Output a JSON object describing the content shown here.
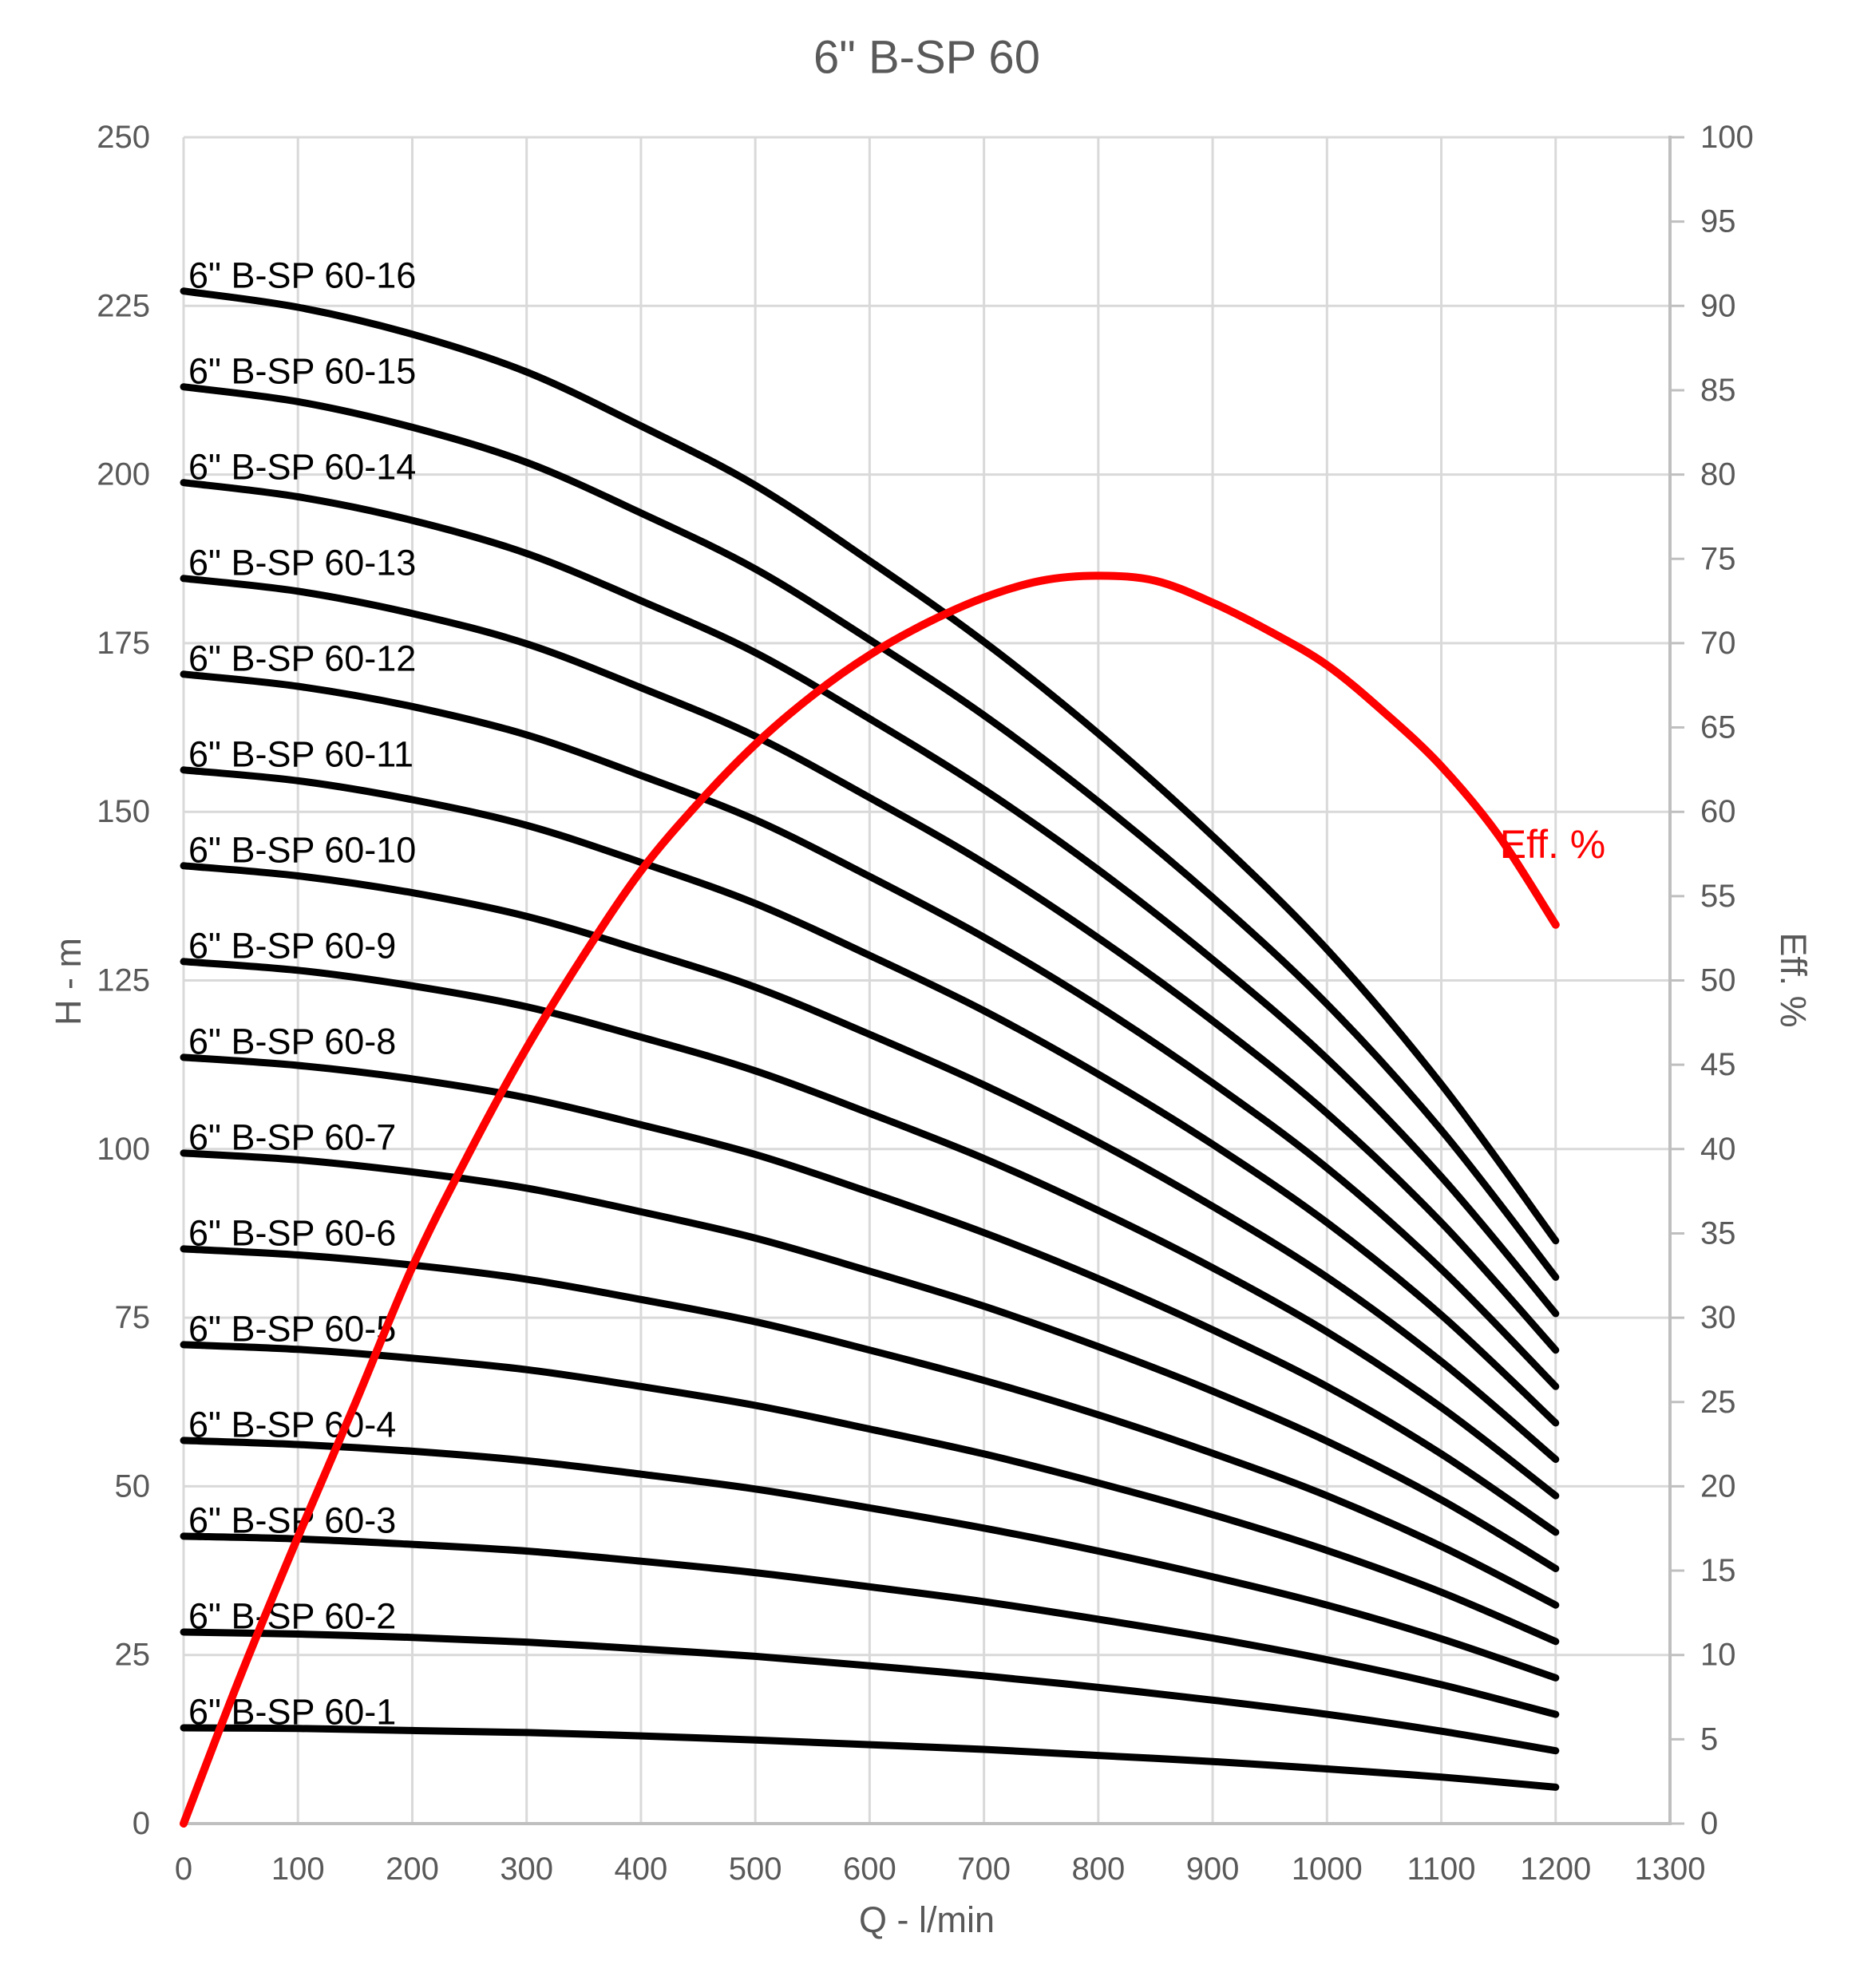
{
  "chart_data": {
    "type": "line",
    "title": "6\" B-SP 60",
    "xlabel": "Q - l/min",
    "ylabel_left": "H - m",
    "ylabel_right": "Eff. %",
    "grid": true,
    "legend": "none (curves labeled inline)",
    "x_axis": {
      "min": 0,
      "max": 1300,
      "tick_step": 100,
      "tick_labels": [
        "0",
        "100",
        "200",
        "300",
        "400",
        "500",
        "600",
        "700",
        "800",
        "900",
        "1000",
        "1100",
        "1200",
        "1300"
      ]
    },
    "y_axis_left": {
      "min": 0,
      "max": 250,
      "tick_step": 25,
      "tick_labels": [
        "0",
        "25",
        "50",
        "75",
        "100",
        "125",
        "150",
        "175",
        "200",
        "225",
        "250"
      ]
    },
    "y_axis_right": {
      "min": 0,
      "max": 100,
      "label_step": 5,
      "gridline_step": 10,
      "tick_labels": [
        "0",
        "5",
        "10",
        "15",
        "20",
        "25",
        "30",
        "35",
        "40",
        "45",
        "50",
        "55",
        "60",
        "65",
        "70",
        "75",
        "80",
        "85",
        "90",
        "95",
        "100"
      ]
    },
    "q": [
      0,
      100,
      200,
      300,
      400,
      500,
      600,
      700,
      800,
      900,
      1000,
      1100,
      1200
    ],
    "series": [
      {
        "name": "6\" B-SP 60-1",
        "stage": 1,
        "axis": "left",
        "values": [
          14.2,
          14.1,
          13.8,
          13.5,
          13.0,
          12.4,
          11.7,
          11.0,
          10.1,
          9.2,
          8.1,
          6.9,
          5.4
        ]
      },
      {
        "name": "6\" B-SP 60-2",
        "stage": 2,
        "axis": "left",
        "values": [
          28.4,
          28.1,
          27.6,
          26.9,
          25.9,
          24.8,
          23.4,
          21.9,
          20.2,
          18.3,
          16.2,
          13.7,
          10.8
        ]
      },
      {
        "name": "6\" B-SP 60-3",
        "stage": 3,
        "axis": "left",
        "values": [
          42.6,
          42.2,
          41.4,
          40.4,
          38.9,
          37.2,
          35.1,
          32.9,
          30.3,
          27.5,
          24.3,
          20.6,
          16.2
        ]
      },
      {
        "name": "6\" B-SP 60-4",
        "stage": 4,
        "axis": "left",
        "values": [
          56.8,
          56.2,
          55.2,
          53.8,
          51.8,
          49.6,
          46.8,
          43.8,
          40.4,
          36.6,
          32.4,
          27.4,
          21.6
        ]
      },
      {
        "name": "6\" B-SP 60-5",
        "stage": 5,
        "axis": "left",
        "values": [
          71.0,
          70.3,
          69.0,
          67.3,
          64.8,
          62.0,
          58.5,
          54.8,
          50.5,
          45.8,
          40.5,
          34.3,
          27.0
        ]
      },
      {
        "name": "6\" B-SP 60-6",
        "stage": 6,
        "axis": "left",
        "values": [
          85.2,
          84.3,
          82.8,
          80.7,
          77.7,
          74.4,
          70.2,
          65.7,
          60.6,
          54.9,
          48.6,
          41.1,
          32.4
        ]
      },
      {
        "name": "6\" B-SP 60-7",
        "stage": 7,
        "axis": "left",
        "values": [
          99.4,
          98.4,
          96.6,
          94.2,
          90.7,
          86.8,
          81.9,
          76.7,
          70.7,
          64.1,
          56.7,
          48.0,
          37.8
        ]
      },
      {
        "name": "6\" B-SP 60-8",
        "stage": 8,
        "axis": "left",
        "values": [
          113.6,
          112.4,
          110.4,
          107.6,
          103.6,
          99.2,
          93.6,
          87.6,
          80.8,
          73.2,
          64.8,
          54.8,
          43.2
        ]
      },
      {
        "name": "6\" B-SP 60-9",
        "stage": 9,
        "axis": "left",
        "values": [
          127.8,
          126.5,
          124.2,
          121.1,
          116.6,
          111.6,
          105.3,
          98.6,
          90.9,
          82.4,
          72.9,
          61.7,
          48.6
        ]
      },
      {
        "name": "6\" B-SP 60-10",
        "stage": 10,
        "axis": "left",
        "values": [
          142.0,
          140.5,
          138.0,
          134.5,
          129.5,
          124.0,
          117.0,
          109.5,
          101.0,
          91.5,
          81.0,
          68.5,
          54.0
        ]
      },
      {
        "name": "6\" B-SP 60-11",
        "stage": 11,
        "axis": "left",
        "values": [
          156.2,
          154.6,
          151.8,
          148.0,
          142.5,
          136.4,
          128.7,
          120.5,
          111.1,
          100.7,
          89.1,
          75.4,
          59.4
        ]
      },
      {
        "name": "6\" B-SP 60-12",
        "stage": 12,
        "axis": "left",
        "values": [
          170.4,
          168.6,
          165.6,
          161.4,
          155.4,
          148.8,
          140.4,
          131.4,
          121.2,
          109.8,
          97.2,
          82.2,
          64.8
        ]
      },
      {
        "name": "6\" B-SP 60-13",
        "stage": 13,
        "axis": "left",
        "values": [
          184.6,
          182.7,
          179.4,
          174.9,
          168.4,
          161.2,
          152.1,
          142.4,
          131.3,
          119.0,
          105.3,
          89.1,
          70.2
        ]
      },
      {
        "name": "6\" B-SP 60-14",
        "stage": 14,
        "axis": "left",
        "values": [
          198.8,
          196.7,
          193.2,
          188.3,
          181.3,
          173.6,
          163.8,
          153.3,
          141.4,
          128.1,
          113.4,
          95.9,
          75.6
        ]
      },
      {
        "name": "6\" B-SP 60-15",
        "stage": 15,
        "axis": "left",
        "values": [
          213.0,
          210.8,
          207.0,
          201.8,
          194.3,
          186.0,
          175.5,
          164.3,
          151.5,
          137.3,
          121.5,
          102.8,
          81.0
        ]
      },
      {
        "name": "6\" B-SP 60-16",
        "stage": 16,
        "axis": "left",
        "values": [
          227.2,
          224.8,
          220.8,
          215.2,
          207.2,
          198.4,
          187.2,
          175.2,
          161.6,
          146.4,
          129.6,
          109.6,
          86.4
        ]
      }
    ],
    "efficiency_curve": {
      "name": "Eff. %",
      "axis": "right",
      "q": [
        0,
        50,
        100,
        150,
        200,
        250,
        300,
        350,
        400,
        450,
        500,
        550,
        600,
        650,
        700,
        750,
        800,
        850,
        900,
        950,
        1000,
        1050,
        1100,
        1150,
        1200
      ],
      "values": [
        0,
        8.8,
        17.0,
        24.9,
        33.0,
        39.8,
        46.0,
        51.5,
        56.5,
        60.5,
        64.0,
        66.9,
        69.3,
        71.2,
        72.7,
        73.7,
        74.0,
        73.7,
        72.4,
        70.7,
        68.7,
        65.9,
        62.7,
        58.6,
        53.3
      ],
      "peak": {
        "q": 800,
        "eff": 74.0
      },
      "annotation": {
        "text": "Eff. %",
        "q": 1198,
        "eff": 58.1
      }
    },
    "colors": {
      "head_curve": "#000000",
      "efficiency_curve": "#FF0000",
      "gridline": "#D9D9D9",
      "axis_line": "#BFBFBF",
      "tick_label": "#595959",
      "title": "#595959",
      "curve_label": "#000000",
      "background": "#FFFFFF"
    }
  }
}
